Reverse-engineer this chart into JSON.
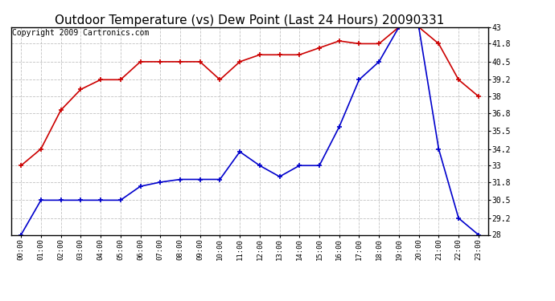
{
  "title": "Outdoor Temperature (vs) Dew Point (Last 24 Hours) 20090331",
  "copyright": "Copyright 2009 Cartronics.com",
  "hours": [
    "00:00",
    "01:00",
    "02:00",
    "03:00",
    "04:00",
    "05:00",
    "06:00",
    "07:00",
    "08:00",
    "09:00",
    "10:00",
    "11:00",
    "12:00",
    "13:00",
    "14:00",
    "15:00",
    "16:00",
    "17:00",
    "18:00",
    "19:00",
    "20:00",
    "21:00",
    "22:00",
    "23:00"
  ],
  "temp": [
    33.0,
    34.2,
    37.0,
    38.5,
    39.2,
    39.2,
    40.5,
    40.5,
    40.5,
    40.5,
    39.2,
    40.5,
    41.0,
    41.0,
    41.0,
    41.5,
    42.0,
    41.8,
    41.8,
    43.0,
    43.0,
    41.8,
    39.2,
    38.0
  ],
  "dew": [
    28.0,
    30.5,
    30.5,
    30.5,
    30.5,
    30.5,
    31.5,
    31.8,
    32.0,
    32.0,
    32.0,
    34.0,
    33.0,
    32.2,
    33.0,
    33.0,
    35.8,
    39.2,
    40.5,
    43.0,
    43.0,
    34.2,
    29.2,
    28.0
  ],
  "temp_color": "#cc0000",
  "dew_color": "#0000cc",
  "bg_color": "#ffffff",
  "plot_bg_color": "#ffffff",
  "grid_color": "#bbbbbb",
  "ylim_min": 28.0,
  "ylim_max": 43.0,
  "yticks": [
    28.0,
    29.2,
    30.5,
    31.8,
    33.0,
    34.2,
    35.5,
    36.8,
    38.0,
    39.2,
    40.5,
    41.8,
    43.0
  ],
  "title_fontsize": 11,
  "copyright_fontsize": 7,
  "marker": "+",
  "markersize": 5,
  "markeredgewidth": 1.2,
  "linewidth": 1.2
}
